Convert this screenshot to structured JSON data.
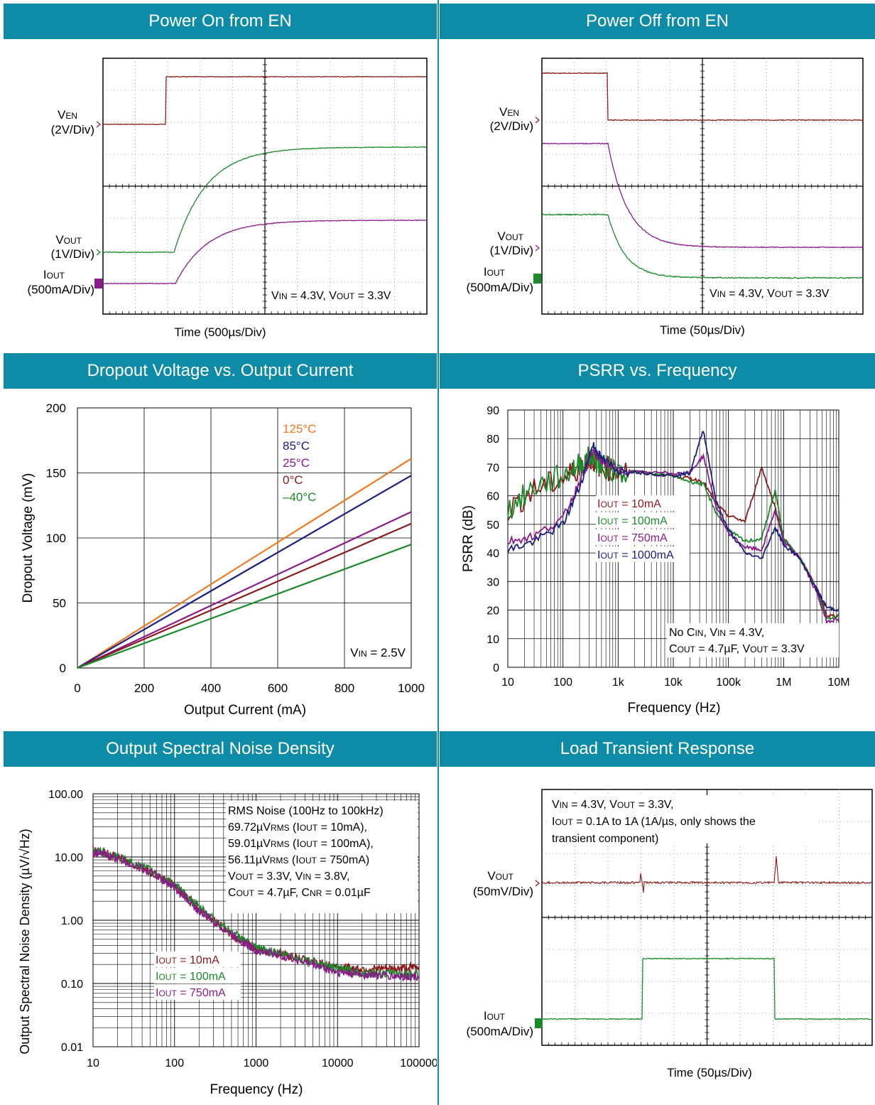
{
  "panels": {
    "p1": {
      "title": "Power On from EN"
    },
    "p2": {
      "title": "Power Off from EN"
    },
    "p3": {
      "title": "Dropout Voltage vs. Output Current"
    },
    "p4": {
      "title": "PSRR vs. Frequency"
    },
    "p5": {
      "title": "Output Spectral Noise Density"
    },
    "p6": {
      "title": "Load Transient Response"
    }
  },
  "colors": {
    "header": "#0e8ba6",
    "dark_red": "#8b1a1a",
    "green": "#1a8a2a",
    "purple": "#8b1a8b",
    "navy": "#1a2080",
    "orange": "#f07820"
  },
  "chart_data": [
    {
      "id": "power-on",
      "type": "line",
      "title": "Power On from EN",
      "xlabel": "Time  (500µs/Div)",
      "channels": [
        {
          "label": "VEN",
          "scale": "(2V/Div)"
        },
        {
          "label": "VOUT",
          "scale": "(1V/Div)"
        },
        {
          "label": "IOUT",
          "scale": "(500mA/Div)"
        }
      ],
      "annotation": "VIN = 4.3V, VOUT = 3.3V"
    },
    {
      "id": "power-off",
      "type": "line",
      "title": "Power Off from EN",
      "xlabel": "Time  (50µs/Div)",
      "channels": [
        {
          "label": "VEN",
          "scale": "(2V/Div)"
        },
        {
          "label": "VOUT",
          "scale": "(1V/Div)"
        },
        {
          "label": "IOUT",
          "scale": "(500mA/Div)"
        }
      ],
      "annotation": "VIN = 4.3V, VOUT = 3.3V"
    },
    {
      "id": "dropout",
      "type": "line",
      "title": "Dropout Voltage vs. Output Current",
      "xlabel": "Output Current (mA)",
      "ylabel": "Dropout Voltage (mV)",
      "xlim": [
        0,
        1000
      ],
      "ylim": [
        0,
        200
      ],
      "xticks": [
        "0",
        "200",
        "400",
        "600",
        "800",
        "1000"
      ],
      "yticks": [
        "0",
        "50",
        "100",
        "150",
        "200"
      ],
      "x": [
        0,
        1000
      ],
      "series": [
        {
          "name": "125°C",
          "values": [
            0,
            161
          ],
          "color": "#f07820"
        },
        {
          "name": "85°C",
          "values": [
            0,
            148
          ],
          "color": "#1a2080"
        },
        {
          "name": "25°C",
          "values": [
            0,
            120
          ],
          "color": "#8b1a8b"
        },
        {
          "name": "0°C",
          "values": [
            0,
            111
          ],
          "color": "#8b1a1a"
        },
        {
          "name": "–40°C",
          "values": [
            0,
            95
          ],
          "color": "#1a8a2a"
        }
      ],
      "annotation": "VIN = 2.5V"
    },
    {
      "id": "psrr",
      "type": "line",
      "title": "PSRR vs. Frequency",
      "xlabel": "Frequency (Hz)",
      "ylabel": "PSRR (dB)",
      "xscale": "log",
      "xlim": [
        10,
        10000000
      ],
      "ylim": [
        0,
        90
      ],
      "xticks": [
        "10",
        "100",
        "1k",
        "10k",
        "100k",
        "1M",
        "10M"
      ],
      "yticks": [
        "0",
        "10",
        "20",
        "30",
        "40",
        "50",
        "60",
        "70",
        "80",
        "90"
      ],
      "x": [
        10,
        30,
        100,
        200,
        350,
        500,
        1000,
        3000,
        10000,
        20000,
        35000,
        60000,
        100000,
        200000,
        400000,
        700000,
        1000000,
        2000000,
        4000000,
        6000000,
        10000000
      ],
      "series": [
        {
          "name": "IOUT = 10mA",
          "color": "#8b1a1a",
          "values": [
            55,
            62,
            66,
            70,
            73,
            70,
            69,
            68,
            67,
            66,
            65,
            57,
            53,
            51,
            70,
            56,
            45,
            38,
            28,
            18,
            18
          ]
        },
        {
          "name": "IOUT = 100mA",
          "color": "#1a8a2a",
          "values": [
            55,
            63,
            67,
            71,
            74,
            70,
            69,
            68,
            67,
            65,
            64,
            54,
            48,
            44,
            45,
            62,
            45,
            38,
            27,
            17,
            18
          ]
        },
        {
          "name": "IOUT = 750mA",
          "color": "#8b1a8b",
          "values": [
            44,
            46,
            52,
            65,
            76,
            72,
            69,
            68,
            68,
            68,
            74,
            56,
            47,
            42,
            41,
            55,
            44,
            38,
            26,
            16,
            17
          ]
        },
        {
          "name": "IOUT = 1000mA",
          "color": "#1a2080",
          "values": [
            41,
            44,
            50,
            63,
            78,
            73,
            69,
            68,
            67,
            68,
            83,
            58,
            48,
            40,
            38,
            49,
            43,
            38,
            27,
            21,
            20
          ]
        }
      ],
      "annotation": [
        "No CIN, VIN = 4.3V,",
        "COUT = 4.7µF, VOUT = 3.3V"
      ]
    },
    {
      "id": "noise",
      "type": "line",
      "title": "Output Spectral Noise Density",
      "xlabel": "Frequency (Hz)",
      "ylabel": "Output Spectral Noise Density (µV/√Hz)",
      "xscale": "log",
      "yscale": "log",
      "xlim": [
        10,
        100000
      ],
      "ylim": [
        0.01,
        100
      ],
      "xticks": [
        "10",
        "100",
        "1000",
        "10000",
        "100000"
      ],
      "yticks": [
        "0.01",
        "0.10",
        "1.00",
        "10.00",
        "100.00"
      ],
      "x": [
        10,
        20,
        50,
        100,
        200,
        500,
        1000,
        2000,
        5000,
        10000,
        20000,
        50000,
        100000
      ],
      "series": [
        {
          "name": "IOUT = 10mA",
          "color": "#8b1a1a",
          "values": [
            13,
            10,
            6,
            3.5,
            1.5,
            0.6,
            0.35,
            0.3,
            0.22,
            0.18,
            0.17,
            0.17,
            0.18
          ]
        },
        {
          "name": "IOUT = 100mA",
          "color": "#1a8a2a",
          "values": [
            13,
            10,
            6.2,
            3.6,
            1.6,
            0.65,
            0.36,
            0.3,
            0.22,
            0.17,
            0.15,
            0.14,
            0.14
          ]
        },
        {
          "name": "IOUT = 750mA",
          "color": "#8b1a8b",
          "values": [
            12,
            9.5,
            5.8,
            3.3,
            1.4,
            0.6,
            0.33,
            0.28,
            0.2,
            0.15,
            0.14,
            0.13,
            0.13
          ]
        }
      ],
      "annotation": [
        "RMS Noise (100Hz to 100kHz)",
        "69.72µVRMS (IOUT = 10mA),",
        "59.01µVRMS (IOUT = 100mA),",
        "56.11µVRMS (IOUT = 750mA)",
        "VOUT = 3.3V, VIN = 3.8V,",
        "COUT = 4.7µF, CNR = 0.01µF"
      ]
    },
    {
      "id": "load-transient",
      "type": "line",
      "title": "Load Transient Response",
      "xlabel": "Time  (50µs/Div)",
      "channels": [
        {
          "label": "VOUT",
          "scale": "(50mV/Div)"
        },
        {
          "label": "IOUT",
          "scale": "(500mA/Div)"
        }
      ],
      "annotation": [
        "VIN = 4.3V, VOUT = 3.3V,",
        "IOUT = 0.1A to 1A (1A/µs, only shows the",
        "transient component)"
      ]
    }
  ]
}
